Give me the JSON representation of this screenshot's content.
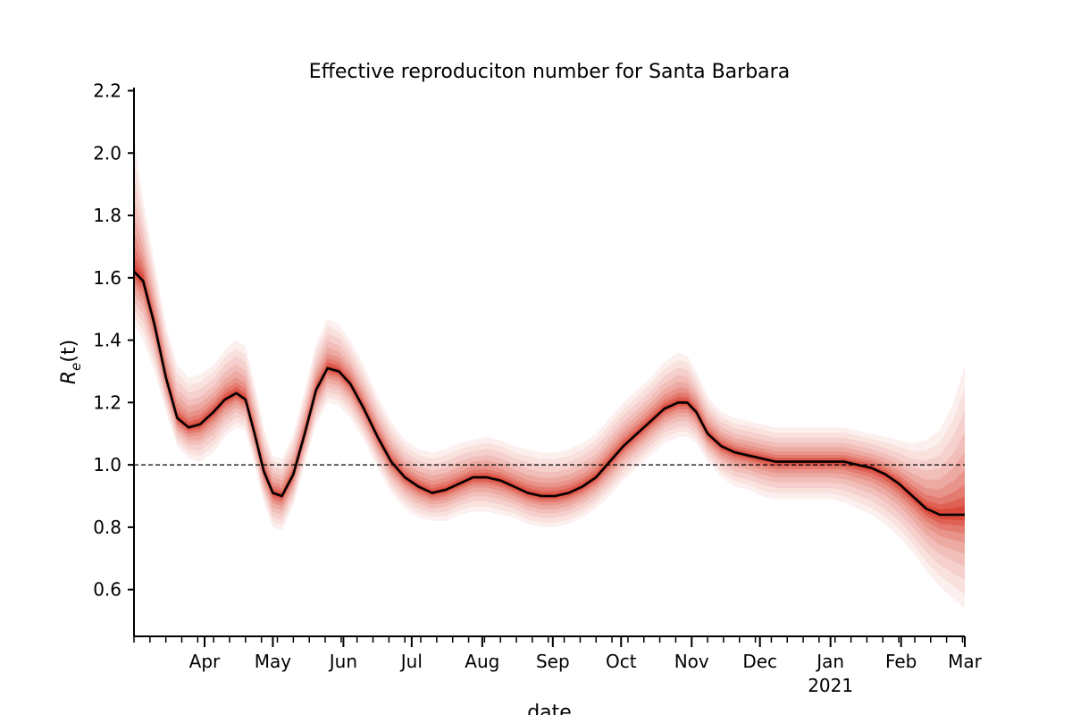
{
  "chart_data": {
    "type": "line",
    "title": "Effective reproduciton number for Santa Barbara",
    "xlabel": "date",
    "ylabel": "R_e(t)",
    "ylabel_base": "R",
    "ylabel_sub": "e",
    "ylabel_arg": "(t)",
    "xlim": [
      "2020-03-01",
      "2021-03-01"
    ],
    "ylim": [
      0.45,
      2.21
    ],
    "yticks": [
      0.6,
      0.8,
      1.0,
      1.2,
      1.4,
      1.6,
      1.8,
      2.0,
      2.2
    ],
    "ytick_labels": [
      "0.6",
      "0.8",
      "1.0",
      "1.2",
      "1.4",
      "1.6",
      "1.8",
      "2.0",
      "2.2"
    ],
    "xticks": [
      {
        "date": "2020-04-01",
        "label": "Apr"
      },
      {
        "date": "2020-05-01",
        "label": "May"
      },
      {
        "date": "2020-06-01",
        "label": "Jun"
      },
      {
        "date": "2020-07-01",
        "label": "Jul"
      },
      {
        "date": "2020-08-01",
        "label": "Aug"
      },
      {
        "date": "2020-09-01",
        "label": "Sep"
      },
      {
        "date": "2020-10-01",
        "label": "Oct"
      },
      {
        "date": "2020-11-01",
        "label": "Nov"
      },
      {
        "date": "2020-12-01",
        "label": "Dec"
      },
      {
        "date": "2021-01-01",
        "label": "Jan",
        "sublabel": "2021"
      },
      {
        "date": "2021-02-01",
        "label": "Feb"
      },
      {
        "date": "2021-03-01",
        "label": "Mar"
      }
    ],
    "reference_line": 1.0,
    "grid": false,
    "band_color": "#d7301f",
    "median_color": "#000000",
    "series": [
      {
        "x": [
          "2020-03-01",
          "2020-03-05",
          "2020-03-10",
          "2020-03-15",
          "2020-03-20",
          "2020-03-25",
          "2020-03-30",
          "2020-04-05",
          "2020-04-10",
          "2020-04-15",
          "2020-04-19",
          "2020-04-23",
          "2020-04-27",
          "2020-05-01",
          "2020-05-05",
          "2020-05-10",
          "2020-05-15",
          "2020-05-20",
          "2020-05-25",
          "2020-05-30",
          "2020-06-04",
          "2020-06-10",
          "2020-06-16",
          "2020-06-22",
          "2020-06-28",
          "2020-07-04",
          "2020-07-10",
          "2020-07-16",
          "2020-07-22",
          "2020-07-28",
          "2020-08-03",
          "2020-08-09",
          "2020-08-15",
          "2020-08-21",
          "2020-08-27",
          "2020-09-02",
          "2020-09-08",
          "2020-09-14",
          "2020-09-20",
          "2020-09-26",
          "2020-10-02",
          "2020-10-08",
          "2020-10-14",
          "2020-10-20",
          "2020-10-26",
          "2020-10-30",
          "2020-11-03",
          "2020-11-08",
          "2020-11-14",
          "2020-11-20",
          "2020-11-26",
          "2020-12-02",
          "2020-12-08",
          "2020-12-14",
          "2020-12-20",
          "2020-12-26",
          "2021-01-01",
          "2021-01-07",
          "2021-01-13",
          "2021-01-19",
          "2021-01-25",
          "2021-01-31",
          "2021-02-06",
          "2021-02-12",
          "2021-02-18",
          "2021-02-24",
          "2021-03-01"
        ],
        "median": [
          1.62,
          1.59,
          1.45,
          1.28,
          1.15,
          1.12,
          1.13,
          1.17,
          1.21,
          1.23,
          1.21,
          1.1,
          0.98,
          0.91,
          0.9,
          0.97,
          1.1,
          1.24,
          1.31,
          1.3,
          1.26,
          1.18,
          1.09,
          1.01,
          0.96,
          0.93,
          0.91,
          0.92,
          0.94,
          0.96,
          0.96,
          0.95,
          0.93,
          0.91,
          0.9,
          0.9,
          0.91,
          0.93,
          0.96,
          1.01,
          1.06,
          1.1,
          1.14,
          1.18,
          1.2,
          1.2,
          1.17,
          1.1,
          1.06,
          1.04,
          1.03,
          1.02,
          1.01,
          1.01,
          1.01,
          1.01,
          1.01,
          1.01,
          1.0,
          0.99,
          0.97,
          0.94,
          0.9,
          0.86,
          0.84,
          0.84,
          0.84
        ],
        "lower": [
          1.45,
          1.4,
          1.3,
          1.17,
          1.06,
          1.02,
          1.01,
          1.04,
          1.09,
          1.12,
          1.11,
          1.0,
          0.88,
          0.8,
          0.79,
          0.87,
          1.0,
          1.13,
          1.2,
          1.19,
          1.15,
          1.08,
          0.99,
          0.91,
          0.86,
          0.83,
          0.82,
          0.82,
          0.84,
          0.85,
          0.85,
          0.84,
          0.83,
          0.81,
          0.8,
          0.8,
          0.81,
          0.83,
          0.86,
          0.9,
          0.95,
          0.99,
          1.03,
          1.07,
          1.09,
          1.09,
          1.07,
          1.01,
          0.96,
          0.93,
          0.92,
          0.9,
          0.89,
          0.89,
          0.89,
          0.89,
          0.89,
          0.88,
          0.86,
          0.84,
          0.81,
          0.77,
          0.72,
          0.66,
          0.61,
          0.57,
          0.54
        ],
        "upper": [
          2.05,
          1.85,
          1.65,
          1.45,
          1.32,
          1.28,
          1.29,
          1.32,
          1.37,
          1.4,
          1.38,
          1.26,
          1.12,
          1.03,
          1.02,
          1.1,
          1.24,
          1.39,
          1.47,
          1.45,
          1.4,
          1.32,
          1.22,
          1.14,
          1.08,
          1.05,
          1.04,
          1.05,
          1.07,
          1.08,
          1.09,
          1.08,
          1.06,
          1.05,
          1.04,
          1.04,
          1.05,
          1.07,
          1.1,
          1.15,
          1.2,
          1.24,
          1.28,
          1.33,
          1.36,
          1.35,
          1.3,
          1.22,
          1.17,
          1.15,
          1.14,
          1.13,
          1.12,
          1.12,
          1.12,
          1.12,
          1.12,
          1.12,
          1.11,
          1.1,
          1.09,
          1.08,
          1.07,
          1.08,
          1.11,
          1.2,
          1.32
        ]
      }
    ]
  }
}
